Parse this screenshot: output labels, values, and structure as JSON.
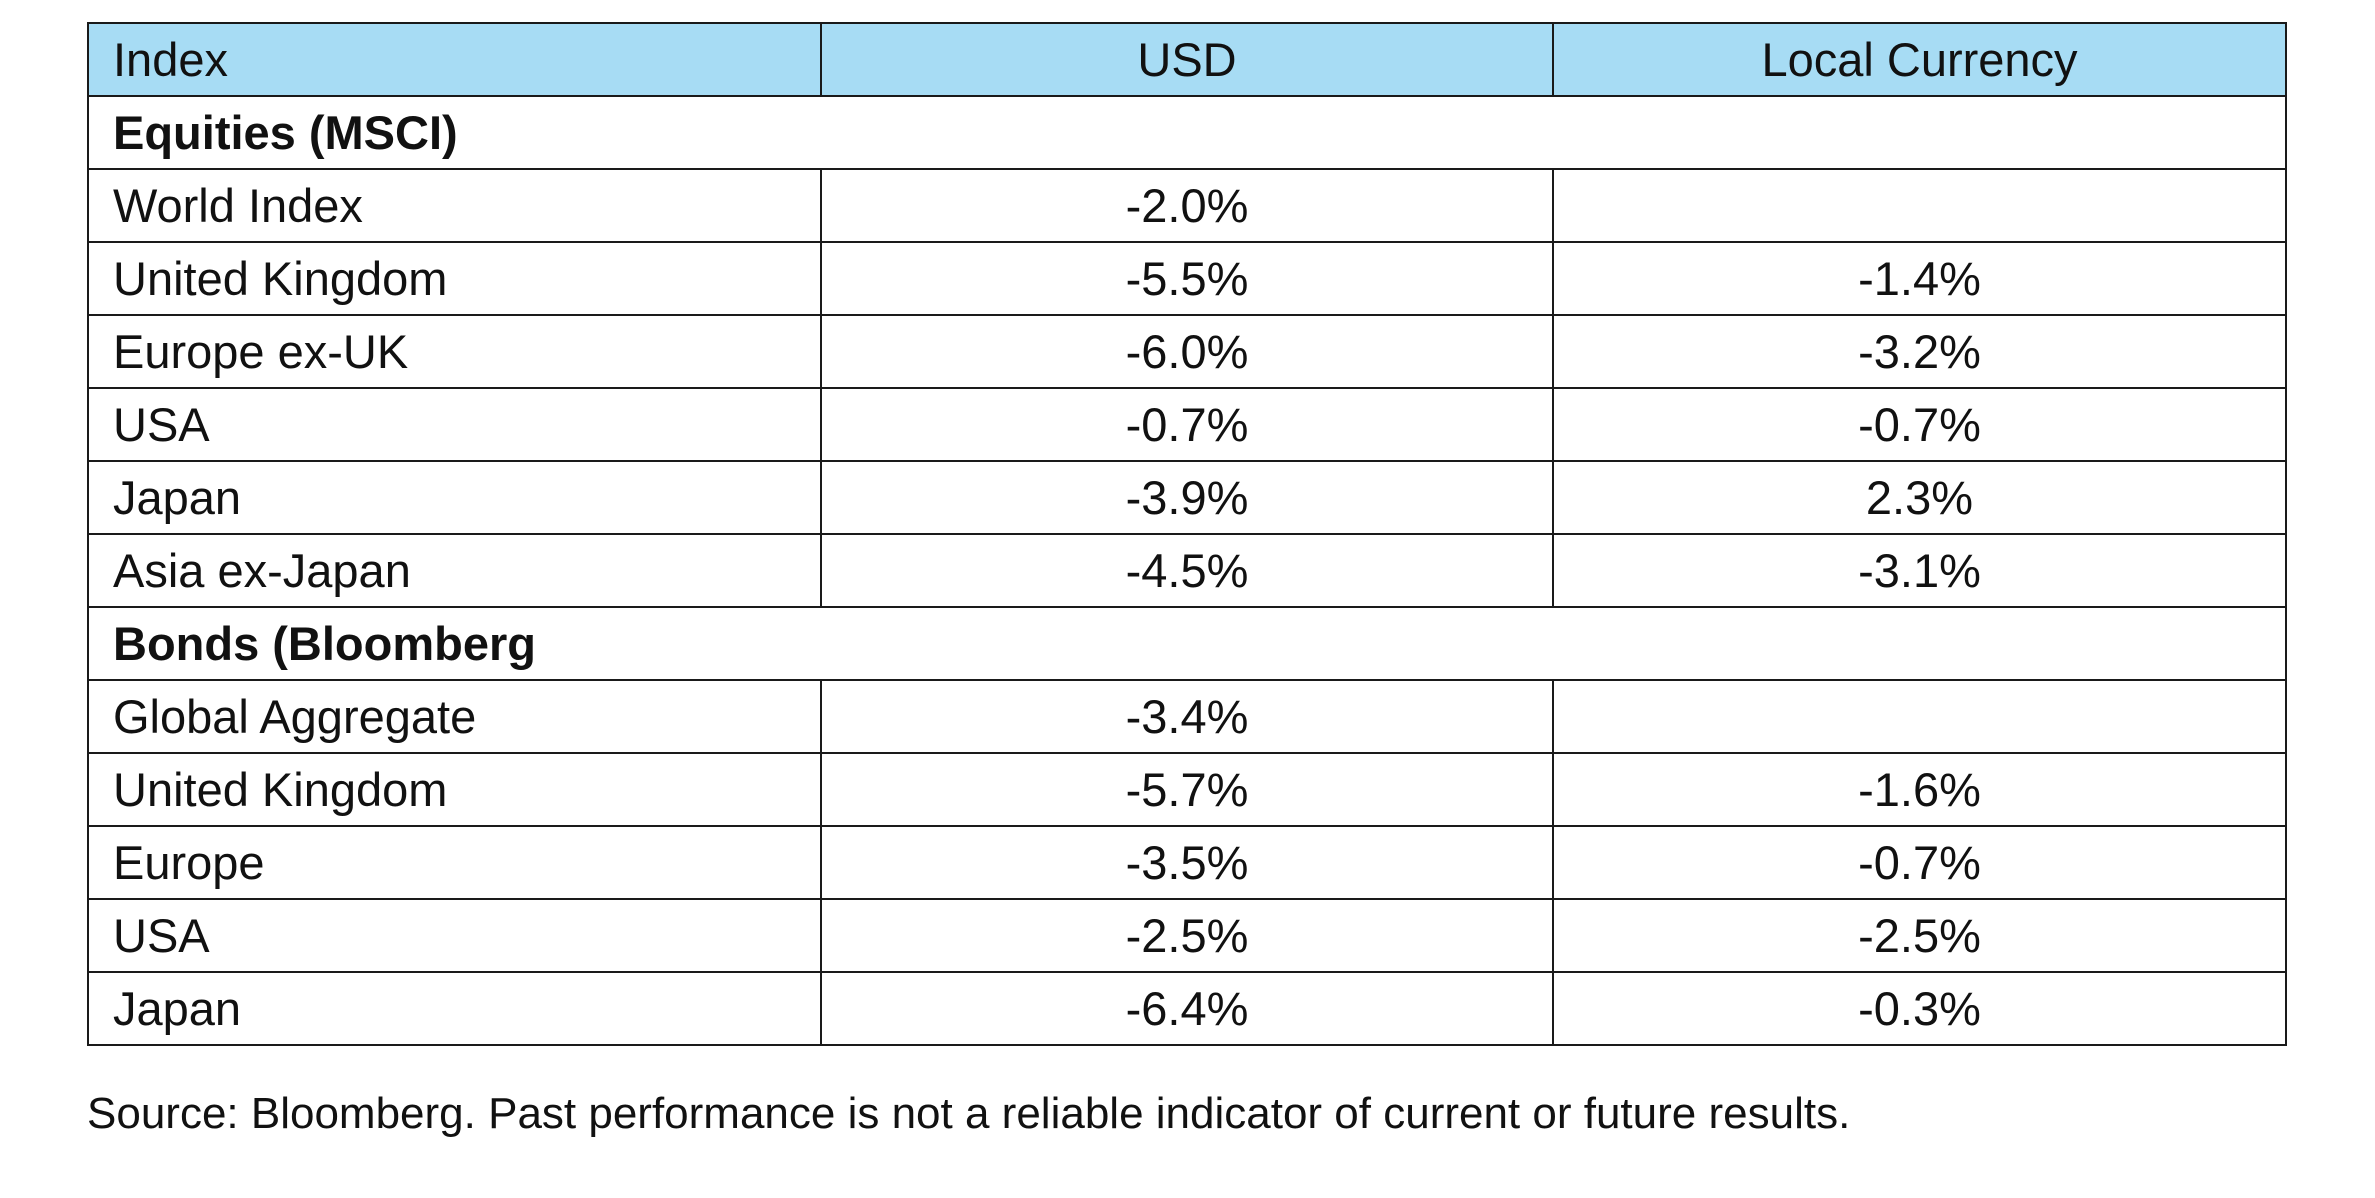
{
  "table": {
    "headers": [
      "Index",
      "USD",
      "Local Currency"
    ],
    "sections": [
      {
        "title": "Equities (MSCI)",
        "rows": [
          {
            "name": "World Index",
            "usd": "-2.0%",
            "local": ""
          },
          {
            "name": "United Kingdom",
            "usd": "-5.5%",
            "local": "-1.4%"
          },
          {
            "name": "Europe ex-UK",
            "usd": "-6.0%",
            "local": "-3.2%"
          },
          {
            "name": "USA",
            "usd": "-0.7%",
            "local": "-0.7%"
          },
          {
            "name": "Japan",
            "usd": "-3.9%",
            "local": "2.3%"
          },
          {
            "name": "Asia ex-Japan",
            "usd": "-4.5%",
            "local": "-3.1%"
          }
        ]
      },
      {
        "title": "Bonds (Bloomberg",
        "rows": [
          {
            "name": "Global Aggregate",
            "usd": "-3.4%",
            "local": ""
          },
          {
            "name": "United Kingdom",
            "usd": "-5.7%",
            "local": "-1.6%"
          },
          {
            "name": "Europe",
            "usd": "-3.5%",
            "local": "-0.7%"
          },
          {
            "name": "USA",
            "usd": "-2.5%",
            "local": "-2.5%"
          },
          {
            "name": "Japan",
            "usd": "-6.4%",
            "local": "-0.3%"
          }
        ]
      }
    ]
  },
  "footer": {
    "source": "Source: Bloomberg. Past performance is not a reliable indicator of current or future results."
  },
  "colors": {
    "header_background": "#a7dcf4",
    "border": "#1a1a1a",
    "text": "#111111"
  }
}
